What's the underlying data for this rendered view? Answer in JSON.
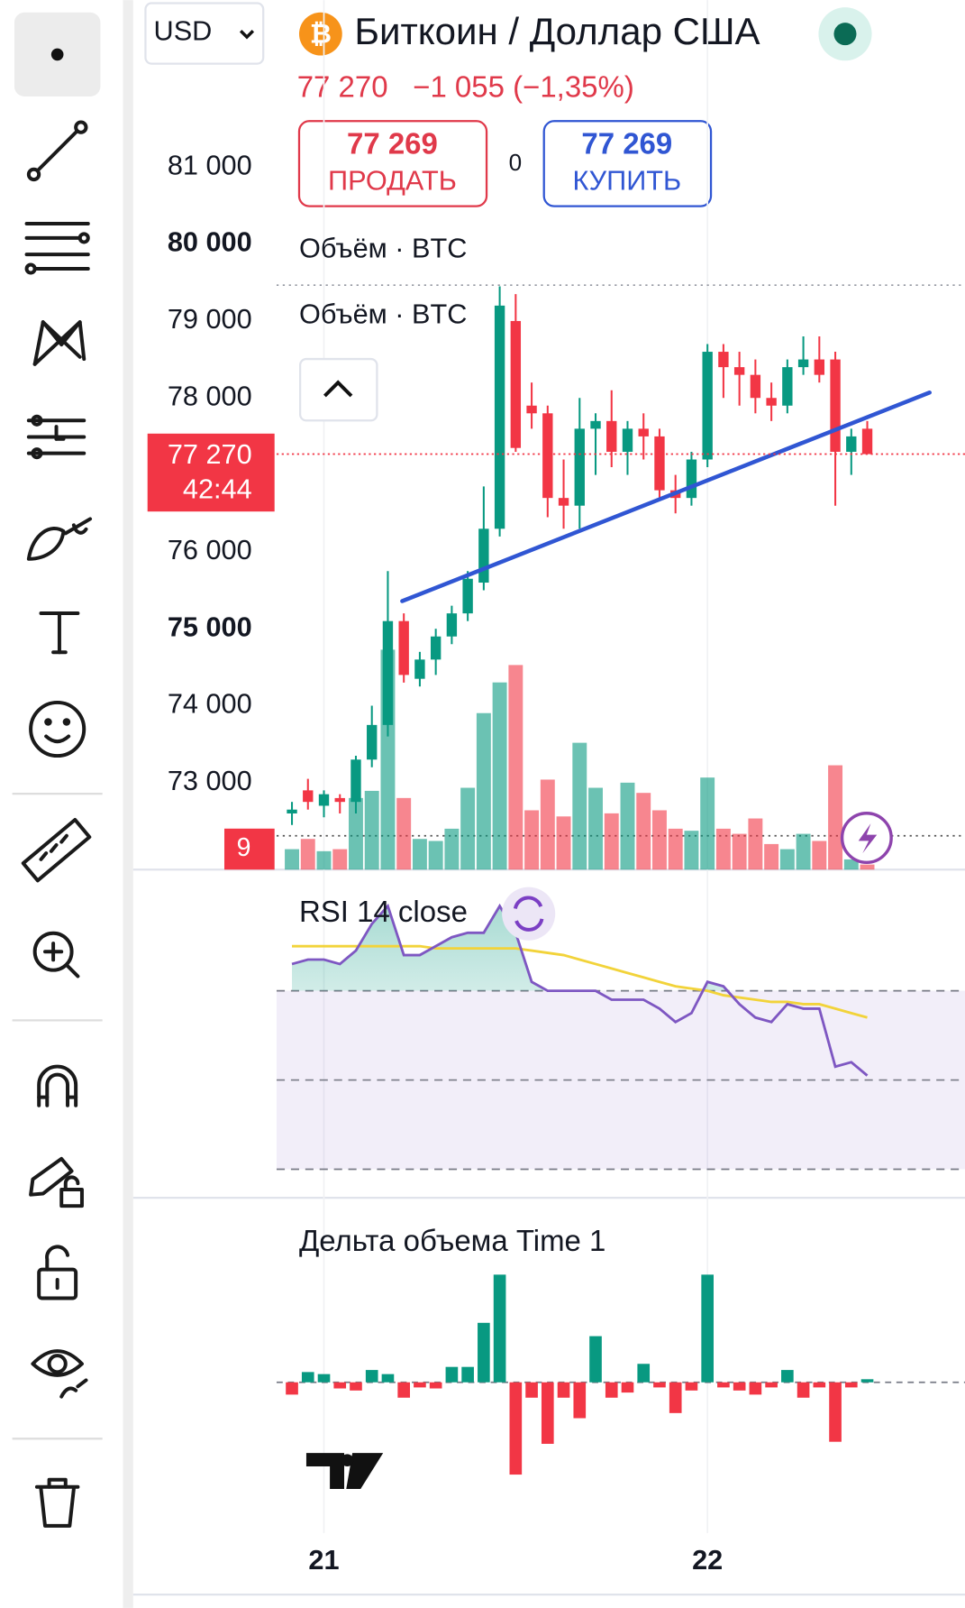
{
  "header": {
    "currency": "USD",
    "symbol_title": "Биткоин / Доллар США",
    "price": "77 270",
    "change": "−1 055 (−1,35%)",
    "sell_price": "77 269",
    "sell_label": "ПРОДАТЬ",
    "spread": "0",
    "buy_price": "77 269",
    "buy_label": "КУПИТЬ"
  },
  "price_chart": {
    "legend": [
      "Объём · BTC",
      "Объём · BTC"
    ],
    "ylim": [
      71870,
      83170
    ],
    "yticks": [
      {
        "value": 81000,
        "label": "81 000",
        "bold": false
      },
      {
        "value": 80000,
        "label": "80 000",
        "bold": true
      },
      {
        "value": 79000,
        "label": "79 000",
        "bold": false
      },
      {
        "value": 78000,
        "label": "78 000",
        "bold": false
      },
      {
        "value": 76000,
        "label": "76 000",
        "bold": false
      },
      {
        "value": 75000,
        "label": "75 000",
        "bold": true
      },
      {
        "value": 74000,
        "label": "74 000",
        "bold": false
      },
      {
        "value": 73000,
        "label": "73 000",
        "bold": false
      }
    ],
    "current_price": {
      "value": 77270,
      "label": "77 270",
      "countdown": "42:44"
    },
    "volume_badge": "9",
    "up_color": "#089981",
    "down_color": "#f23645",
    "candles": [
      [
        72600,
        72750,
        72450,
        72650
      ],
      [
        72900,
        73050,
        72650,
        72750
      ],
      [
        72700,
        72900,
        72550,
        72850
      ],
      [
        72800,
        72850,
        72600,
        72750
      ],
      [
        72750,
        73350,
        72600,
        73300
      ],
      [
        73300,
        74000,
        73200,
        73750
      ],
      [
        73750,
        75750,
        73600,
        75100
      ],
      [
        75100,
        75200,
        74300,
        74400
      ],
      [
        74350,
        74700,
        74250,
        74600
      ],
      [
        74600,
        75000,
        74400,
        74900
      ],
      [
        74900,
        75300,
        74800,
        75200
      ],
      [
        75200,
        75750,
        75100,
        75650
      ],
      [
        75600,
        76850,
        75500,
        76300
      ],
      [
        76300,
        79450,
        76200,
        79200
      ],
      [
        79000,
        79350,
        77300,
        77350
      ],
      [
        77900,
        78200,
        77600,
        77800
      ],
      [
        77800,
        77900,
        76450,
        76700
      ],
      [
        76700,
        77200,
        76300,
        76600
      ],
      [
        76600,
        78000,
        76300,
        77600
      ],
      [
        77600,
        77800,
        77000,
        77700
      ],
      [
        77700,
        78100,
        77100,
        77300
      ],
      [
        77300,
        77700,
        77000,
        77600
      ],
      [
        77600,
        77800,
        77200,
        77500
      ],
      [
        77500,
        77600,
        76700,
        76800
      ],
      [
        76800,
        77000,
        76500,
        76700
      ],
      [
        76700,
        77300,
        76600,
        77200
      ],
      [
        77200,
        78700,
        77100,
        78600
      ],
      [
        78600,
        78700,
        78000,
        78400
      ],
      [
        78400,
        78600,
        77900,
        78300
      ],
      [
        78300,
        78500,
        77800,
        78000
      ],
      [
        78000,
        78200,
        77700,
        77900
      ],
      [
        77900,
        78500,
        77800,
        78400
      ],
      [
        78400,
        78800,
        78300,
        78500
      ],
      [
        78500,
        78800,
        78200,
        78300
      ],
      [
        78500,
        78600,
        76600,
        77300
      ],
      [
        77300,
        77600,
        77000,
        77500
      ],
      [
        77600,
        77700,
        77300,
        77270
      ]
    ],
    "volume_ylim": [
      0,
      850
    ],
    "volumes": [
      20,
      30,
      18,
      20,
      70,
      77,
      215,
      70,
      30,
      28,
      40,
      80,
      153,
      183,
      200,
      58,
      88,
      52,
      124,
      80,
      55,
      85,
      75,
      58,
      40,
      38,
      90,
      40,
      35,
      50,
      25,
      20,
      35,
      28,
      102,
      10,
      5
    ],
    "trendline": {
      "color": "#3056d3",
      "points": [
        [
          6.9,
          75360
        ],
        [
          39.9,
          78070
        ]
      ]
    }
  },
  "rsi": {
    "title": "RSI 14 close",
    "ylim": [
      24.3,
      96.7
    ],
    "levels": [
      70,
      50,
      30
    ],
    "rsi_color": "#7e57c2",
    "ma_color": "#f2d33a",
    "rsi": [
      76,
      77,
      77,
      76,
      79,
      85,
      89,
      78,
      78,
      80,
      82,
      83,
      83,
      89,
      83,
      72,
      70,
      70,
      70,
      70,
      68,
      68,
      68,
      66,
      63,
      65,
      72,
      71,
      67,
      64,
      63,
      67,
      66,
      66,
      53,
      54,
      51
    ],
    "ma": [
      80,
      80,
      80,
      80,
      80,
      80,
      80,
      80,
      80,
      79.5,
      79.5,
      79.5,
      79.5,
      79.5,
      79.5,
      79,
      78.5,
      78,
      77,
      76,
      75,
      74,
      73,
      72,
      71,
      70.5,
      70,
      69,
      68.5,
      68,
      67.5,
      67.5,
      67,
      67,
      66,
      65,
      64
    ]
  },
  "delta": {
    "title": "Дельта объема Time 1",
    "ylim": [
      -150,
      180
    ],
    "values": [
      -12,
      10,
      8,
      -6,
      -8,
      12,
      8,
      -15,
      -5,
      -6,
      15,
      15,
      58,
      105,
      -90,
      -15,
      -60,
      -15,
      -35,
      45,
      -15,
      -10,
      18,
      -5,
      -30,
      -8,
      105,
      -5,
      -8,
      -12,
      -5,
      12,
      -15,
      -5,
      -58,
      -5,
      3
    ]
  },
  "x_axis": {
    "labels": [
      {
        "index": 2,
        "label": "21"
      },
      {
        "index": 26,
        "label": "22"
      }
    ]
  }
}
